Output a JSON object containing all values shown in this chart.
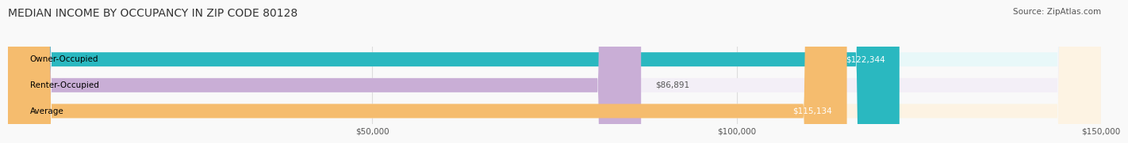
{
  "title": "MEDIAN INCOME BY OCCUPANCY IN ZIP CODE 80128",
  "source": "Source: ZipAtlas.com",
  "categories": [
    "Owner-Occupied",
    "Renter-Occupied",
    "Average"
  ],
  "values": [
    122344,
    86891,
    115134
  ],
  "labels": [
    "$122,344",
    "$86,891",
    "$115,134"
  ],
  "bar_colors": [
    "#2ab8c0",
    "#c9aed6",
    "#f5bc6e"
  ],
  "bar_bg_colors": [
    "#e8f8f9",
    "#f3eff7",
    "#fdf3e3"
  ],
  "xlim": [
    0,
    150000
  ],
  "xticks": [
    0,
    50000,
    100000,
    150000
  ],
  "xticklabels": [
    "",
    "$50,000",
    "$100,000",
    "$150,000"
  ],
  "title_fontsize": 10,
  "source_fontsize": 7.5,
  "label_fontsize": 7.5,
  "bar_height": 0.55,
  "background_color": "#f9f9f9",
  "grid_color": "#dddddd"
}
